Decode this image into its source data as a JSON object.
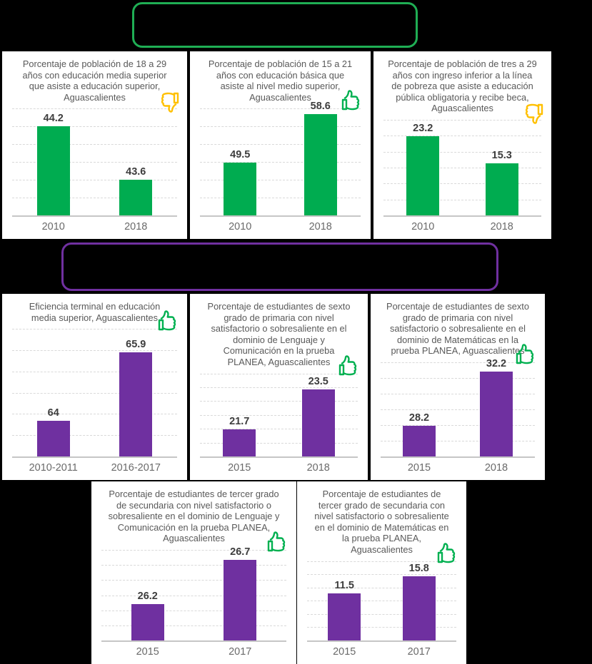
{
  "header_boxes": [
    {
      "name": "top-summary-box",
      "border_color": "#1FAE54"
    },
    {
      "name": "middle-summary-box",
      "border_color": "#7030A0"
    }
  ],
  "chart_data": [
    {
      "type": "bar",
      "title": "Porcentaje de población de 18 a 29 años con educación media superior que asiste a educación superior, Aguascalientes",
      "categories": [
        "2010",
        "2018"
      ],
      "values": [
        44.2,
        43.6
      ],
      "ylim": [
        43.2,
        44.4
      ],
      "grid": "dashed-horizontal",
      "bar_color": "#00AC50",
      "icon": "thumbs-down",
      "icon_color": "#FFC000"
    },
    {
      "type": "bar",
      "title": "Porcentaje de población de 15 a 21 años con educación básica que asiste al nivel medio superior, Aguascalientes",
      "categories": [
        "2010",
        "2018"
      ],
      "values": [
        49.5,
        58.6
      ],
      "ylim": [
        39.5,
        59.6
      ],
      "grid": "dashed-horizontal",
      "bar_color": "#00AC50",
      "icon": "thumbs-up",
      "icon_color": "#00B050"
    },
    {
      "type": "bar",
      "title": "Porcentaje de población de tres a 29 años con ingreso inferior a la línea de pobreza que asiste a educación pública obligatoria y recibe beca, Aguascalientes",
      "categories": [
        "2010",
        "2018"
      ],
      "values": [
        23.2,
        15.3
      ],
      "ylim": [
        0,
        28
      ],
      "grid": "dashed-horizontal",
      "bar_color": "#00AC50",
      "icon": "thumbs-down",
      "icon_color": "#FFC000"
    },
    {
      "type": "bar",
      "title": "Eficiencia terminal en educación media superior, Aguascalientes",
      "categories": [
        "2010-2011",
        "2016-2017"
      ],
      "values": [
        64,
        65.9
      ],
      "ylim": [
        63,
        66.55
      ],
      "grid": "dashed-horizontal",
      "bar_color": "#6F30A0",
      "icon": "thumbs-up",
      "icon_color": "#00B050"
    },
    {
      "type": "bar",
      "title": "Porcentaje de estudiantes de sexto grado de primaria con nivel satisfactorio o sobresaliente en el dominio de Lenguaje y Comunicación en la prueba PLANEA, Aguascalientes",
      "categories": [
        "2015",
        "2018"
      ],
      "values": [
        21.7,
        23.5
      ],
      "ylim": [
        20.5,
        24.2
      ],
      "grid": "dashed-horizontal",
      "bar_color": "#6F30A0",
      "icon": "thumbs-up",
      "icon_color": "#00B050"
    },
    {
      "type": "bar",
      "title": "Porcentaje de estudiantes de sexto grado de primaria con nivel satisfactorio o sobresaliente en el dominio de Matemáticas en la prueba PLANEA, Aguascalientes",
      "categories": [
        "2015",
        "2018"
      ],
      "values": [
        28.2,
        32.2
      ],
      "ylim": [
        25.9,
        32.9
      ],
      "grid": "dashed-horizontal",
      "bar_color": "#6F30A0",
      "icon": "thumbs-up",
      "icon_color": "#00B050"
    },
    {
      "type": "bar",
      "title": "Porcentaje de estudiantes de tercer grado de secundaria con nivel satisfactorio o sobresaliente en el dominio de Lenguaje y Comunicación en la prueba PLANEA, Aguascalientes",
      "categories": [
        "2015",
        "2017"
      ],
      "values": [
        26.2,
        26.7
      ],
      "ylim": [
        25.79,
        26.81
      ],
      "grid": "dashed-horizontal",
      "bar_color": "#6F30A0",
      "icon": "thumbs-up",
      "icon_color": "#00B050"
    },
    {
      "type": "bar",
      "title": "Porcentaje de estudiantes de tercer grado de secundaria con nivel satisfactorio o sobresaliente en el dominio de Matemáticas en la prueba PLANEA, Aguascalientes",
      "categories": [
        "2015",
        "2017"
      ],
      "values": [
        11.5,
        15.8
      ],
      "ylim": [
        0,
        19.5
      ],
      "grid": "dashed-horizontal",
      "bar_color": "#6F30A0",
      "icon": "thumbs-up",
      "icon_color": "#00B050"
    }
  ]
}
